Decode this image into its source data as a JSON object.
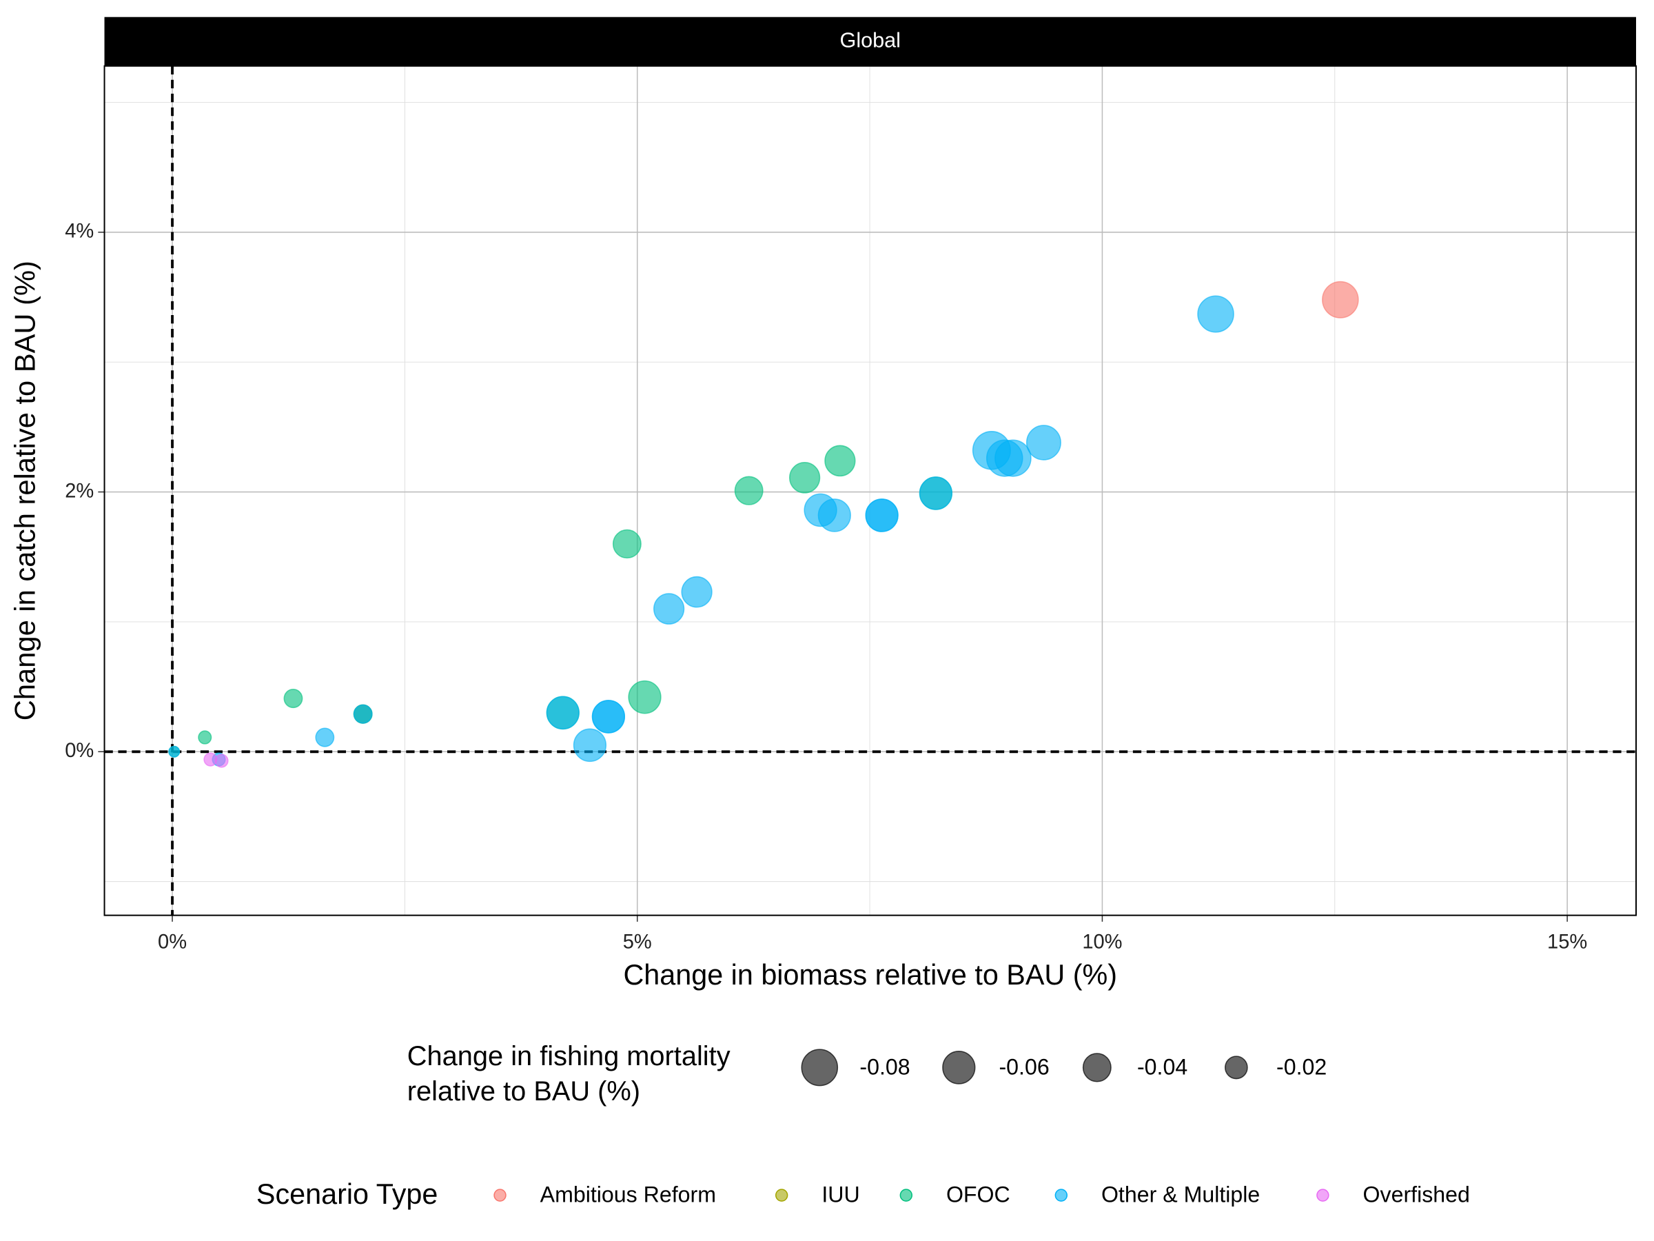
{
  "chart_data": {
    "type": "scatter",
    "facet": "Global",
    "xlabel": "Change in biomass relative to BAU (%)",
    "ylabel": "Change in catch relative to BAU (%)",
    "xlim": [
      -0.73,
      15.74
    ],
    "ylim": [
      -1.26,
      5.28
    ],
    "xticks": [
      {
        "value": 0,
        "label": "0%"
      },
      {
        "value": 5,
        "label": "5%"
      },
      {
        "value": 10,
        "label": "10%"
      },
      {
        "value": 15,
        "label": "15%"
      }
    ],
    "yticks": [
      {
        "value": 0,
        "label": "0%"
      },
      {
        "value": 2,
        "label": "2%"
      },
      {
        "value": 4,
        "label": "4%"
      }
    ],
    "xminor": [
      2.5,
      7.5,
      12.5
    ],
    "yminor": [
      -1,
      1,
      3,
      5
    ],
    "grid": true,
    "hline": 0,
    "vline": 0,
    "size_legend": {
      "title": [
        "Change in fishing mortality",
        "relative to BAU (%)"
      ],
      "values": [
        -0.08,
        -0.06,
        -0.04,
        -0.02
      ]
    },
    "legend_title": "Scenario Type",
    "legend_position": "bottom",
    "series": [
      {
        "name": "Ambitious Reform",
        "color": "#F8766D",
        "x": [
          12.56
        ],
        "y": [
          3.48
        ],
        "size": [
          -0.08
        ]
      },
      {
        "name": "IUU",
        "color": "#A3A500",
        "x": [
          2.05
        ],
        "y": [
          0.29
        ],
        "size": [
          -0.01
        ]
      },
      {
        "name": "OFOC",
        "color": "#00BF7D",
        "x": [
          7.18,
          6.8,
          6.2,
          8.21,
          4.89,
          5.08,
          4.2,
          2.05,
          1.3,
          0.35,
          0.02
        ],
        "y": [
          2.24,
          2.11,
          2.01,
          1.99,
          1.6,
          0.42,
          0.3,
          0.29,
          0.41,
          0.11,
          0.0
        ],
        "size": [
          -0.05,
          -0.05,
          -0.04,
          -0.06,
          -0.04,
          -0.06,
          -0.06,
          -0.01,
          -0.01,
          -0.002,
          -0.0005
        ]
      },
      {
        "name": "Other & Multiple",
        "color": "#00B0F6",
        "x": [
          11.22,
          9.37,
          8.81,
          8.95,
          9.04,
          8.21,
          6.97,
          7.12,
          7.63,
          7.63,
          5.64,
          5.34,
          4.2,
          4.69,
          4.69,
          4.49,
          2.05,
          1.64,
          0.5,
          0.02
        ],
        "y": [
          3.37,
          2.38,
          2.32,
          2.26,
          2.26,
          1.99,
          1.86,
          1.82,
          1.82,
          1.82,
          1.23,
          1.1,
          0.3,
          0.27,
          0.27,
          0.05,
          0.29,
          0.11,
          -0.06,
          0.0
        ],
        "size": [
          -0.08,
          -0.07,
          -0.09,
          -0.08,
          -0.08,
          -0.06,
          -0.06,
          -0.06,
          -0.06,
          -0.06,
          -0.05,
          -0.05,
          -0.06,
          -0.06,
          -0.06,
          -0.06,
          -0.01,
          -0.01,
          -0.002,
          -0.0005
        ]
      },
      {
        "name": "Overfished",
        "color": "#E76BF3",
        "x": [
          0.41,
          0.53
        ],
        "y": [
          -0.06,
          -0.07
        ],
        "size": [
          -0.002,
          -0.002
        ]
      }
    ]
  }
}
